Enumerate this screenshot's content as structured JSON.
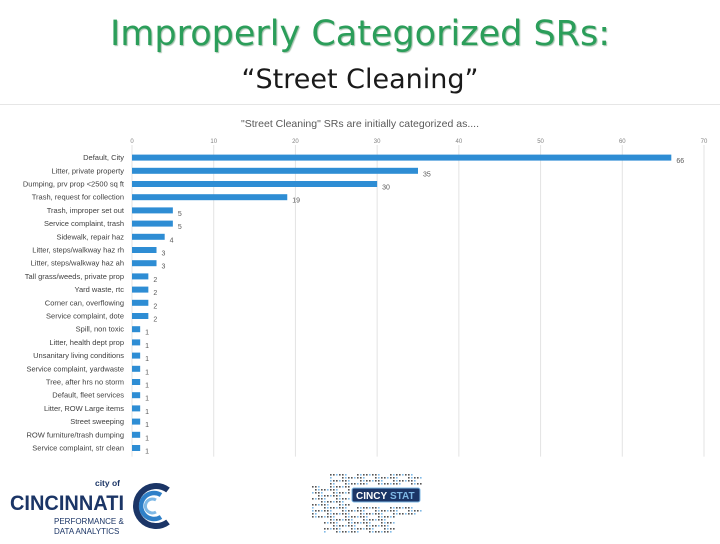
{
  "header": {
    "title": "Improperly Categorized SRs:",
    "subtitle": "“Street Cleaning”"
  },
  "chart_data": {
    "type": "bar",
    "orientation": "horizontal",
    "title": "\"Street Cleaning\" SRs are initially categorized as....",
    "xlim": [
      0,
      70
    ],
    "xticks": [
      0,
      10,
      20,
      30,
      40,
      50,
      60,
      70
    ],
    "grid": true,
    "bar_color": "#2e8dd4",
    "categories": [
      "Default, City",
      "Litter, private property",
      "Dumping, prv prop <2500 sq ft",
      "Trash, request for collection",
      "Trash, improper set out",
      "Service complaint, trash",
      "Sidewalk, repair haz",
      "Litter, steps/walkway haz rh",
      "Litter, steps/walkway haz ah",
      "Tall grass/weeds, private prop",
      "Yard waste, rtc",
      "Corner can, overflowing",
      "Service complaint, dote",
      "Spill, non toxic",
      "Litter, health dept prop",
      "Unsanitary living conditions",
      "Service complaint, yardwaste",
      "Tree, after hrs no storm",
      "Default, fleet services",
      "Litter, ROW Large items",
      "Street sweeping",
      "ROW furniture/trash dumping",
      "Service complaint, str clean"
    ],
    "values": [
      66,
      35,
      30,
      19,
      5,
      5,
      4,
      3,
      3,
      2,
      2,
      2,
      2,
      1,
      1,
      1,
      1,
      1,
      1,
      1,
      1,
      1,
      1
    ]
  },
  "footer": {
    "logo_left": {
      "city_of": "city of",
      "name": "CINCINNATI",
      "line1": "PERFORMANCE &",
      "line2": "DATA ANALYTICS"
    },
    "logo_right": {
      "word_a": "CINCY",
      "word_b": "STAT"
    },
    "colors": {
      "navy": "#1b3566",
      "blue": "#2f80c8",
      "light_blue": "#7fb9e6"
    }
  }
}
